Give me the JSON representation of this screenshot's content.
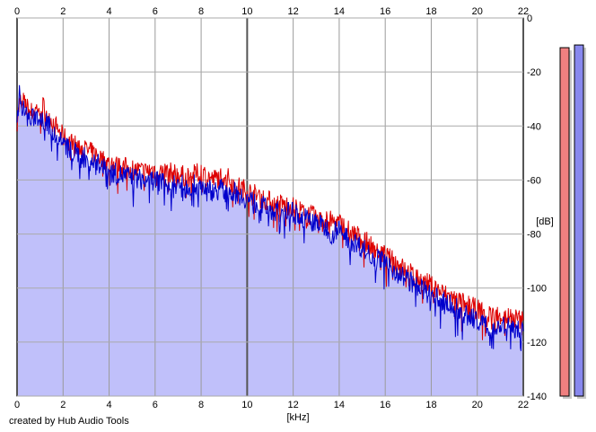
{
  "credit": "created by Hub Audio Tools",
  "chart_data": {
    "type": "area",
    "title": "",
    "xlabel": "[kHz]",
    "ylabel": "[dB]",
    "xlim": [
      0,
      22
    ],
    "ylim": [
      -140,
      0
    ],
    "x_ticks": [
      "0",
      "2",
      "4",
      "6",
      "8",
      "10",
      "12",
      "14",
      "16",
      "18",
      "20",
      "22"
    ],
    "y_ticks": [
      "0",
      "-20",
      "-40",
      "-60",
      "-80",
      "-100",
      "-120",
      "-140"
    ],
    "grid": true,
    "background_color": "#ffffff",
    "fill_color": "#c0c0fa",
    "series": [
      {
        "color": "#dd0000",
        "x": [
          0,
          0.1,
          0.2,
          0.4,
          0.6,
          0.8,
          1,
          1.2,
          1.5,
          2,
          2.5,
          3,
          3.5,
          4,
          4.5,
          5,
          5.5,
          6,
          6.5,
          7,
          7.5,
          8,
          8.5,
          9,
          9.5,
          10,
          10.5,
          11,
          11.5,
          12,
          12.5,
          13,
          13.5,
          14,
          14.5,
          15,
          15.5,
          16,
          16.5,
          17,
          17.5,
          18,
          18.5,
          19,
          19.5,
          20,
          20.5,
          21,
          21.5,
          22
        ],
        "y": [
          -38,
          -32,
          -30,
          -33,
          -35,
          -34,
          -32,
          -33,
          -38,
          -44,
          -47,
          -49,
          -51,
          -54,
          -55,
          -56,
          -57,
          -56,
          -57,
          -58,
          -59,
          -57,
          -60,
          -58,
          -62,
          -64,
          -66,
          -68,
          -69,
          -70,
          -72,
          -74,
          -75,
          -76,
          -79,
          -82,
          -85,
          -88,
          -91,
          -94,
          -97,
          -99,
          -102,
          -104,
          -106,
          -108,
          -110,
          -110,
          -111,
          -112
        ]
      },
      {
        "color": "#0000cc",
        "x": [
          0,
          0.1,
          0.2,
          0.4,
          0.6,
          0.8,
          1,
          1.2,
          1.5,
          2,
          2.5,
          3,
          3.5,
          4,
          4.5,
          5,
          5.5,
          6,
          6.5,
          7,
          7.5,
          8,
          8.5,
          9,
          9.5,
          10,
          10.5,
          11,
          11.5,
          12,
          12.5,
          13,
          13.5,
          14,
          14.5,
          15,
          15.5,
          16,
          16.5,
          17,
          17.5,
          18,
          18.5,
          19,
          19.5,
          20,
          20.5,
          21,
          21.5,
          22
        ],
        "y": [
          -40,
          -25,
          -33,
          -36,
          -38,
          -36,
          -37,
          -38,
          -41,
          -47,
          -50,
          -52,
          -54,
          -57,
          -58,
          -59,
          -60,
          -60,
          -61,
          -62,
          -62,
          -62,
          -64,
          -63,
          -65,
          -67,
          -69,
          -71,
          -72,
          -72,
          -74,
          -76,
          -78,
          -79,
          -82,
          -85,
          -88,
          -91,
          -94,
          -97,
          -100,
          -103,
          -105,
          -107,
          -110,
          -112,
          -114,
          -114,
          -115,
          -116
        ]
      }
    ],
    "channel_meters": [
      {
        "color": "#f08080",
        "level_db": -11
      },
      {
        "color": "#8888ee",
        "level_db": -10
      }
    ]
  }
}
